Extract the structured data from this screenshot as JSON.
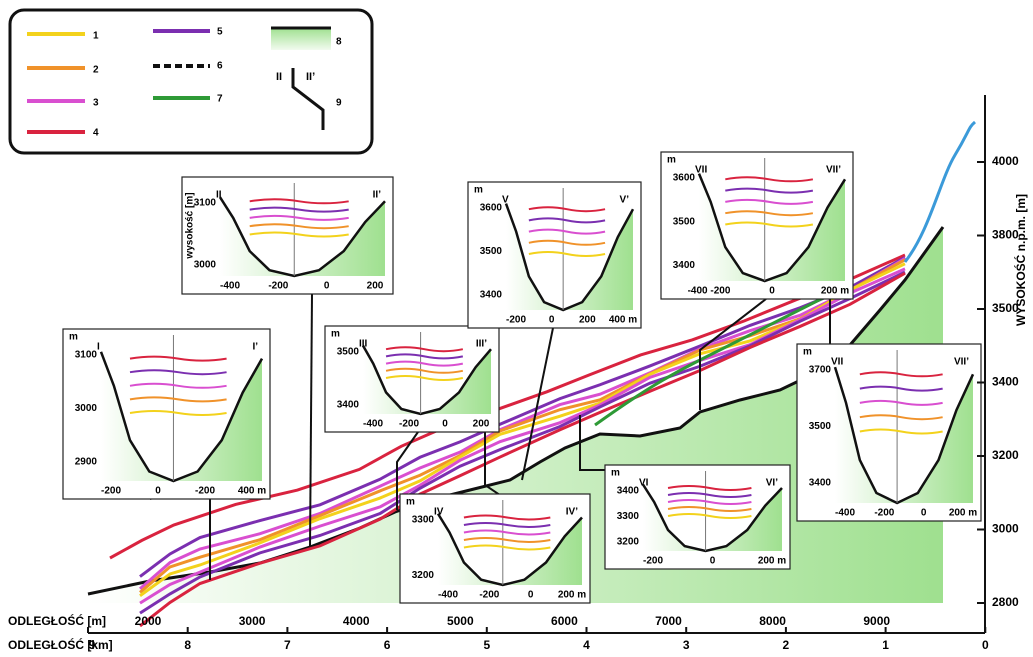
{
  "legend": {
    "items": [
      "1",
      "2",
      "3",
      "4",
      "5",
      "6",
      "7",
      "8",
      "9"
    ],
    "section_labels": [
      "II",
      "II’"
    ]
  },
  "axes": {
    "y_label": "WYSOKOŚĆ n.p.m. [m]",
    "y_ticks": [
      4000,
      3800,
      3500,
      3400,
      3200,
      3000,
      2800
    ],
    "x_m_label": "ODLEGŁOŚĆ [m]",
    "x_m_ticks": [
      2000,
      3000,
      4000,
      5000,
      6000,
      7000,
      8000,
      9000
    ],
    "x_km_label": "ODLEGŁOŚĆ [km]",
    "x_km_ticks": [
      9,
      8,
      7,
      6,
      5,
      4,
      3,
      2,
      1,
      0
    ]
  },
  "insets": [
    {
      "unit": "m",
      "left": "I",
      "right": "I’",
      "y_ticks": [
        "3100",
        "3000",
        "2900"
      ],
      "x_ticks": [
        "-200",
        "0",
        "-200",
        "400 m"
      ]
    },
    {
      "unit": "wysokość [m]",
      "left": "II",
      "right": "II’",
      "y_ticks": [
        "3100",
        "3000"
      ],
      "x_ticks": [
        "-400",
        "-200",
        "0",
        "200"
      ]
    },
    {
      "unit": "m",
      "left": "III",
      "right": "III’",
      "y_ticks": [
        "3500",
        "3400"
      ],
      "x_ticks": [
        "-400",
        "-200",
        "0",
        "200"
      ]
    },
    {
      "unit": "m",
      "left": "IV",
      "right": "IV’",
      "y_ticks": [
        "3300",
        "3200"
      ],
      "x_ticks": [
        "-400",
        "-200",
        "0",
        "200 m"
      ]
    },
    {
      "unit": "m",
      "left": "V",
      "right": "V’",
      "y_ticks": [
        "3600",
        "3500",
        "3400"
      ],
      "x_ticks": [
        "-200",
        "0",
        "200",
        "400 m"
      ]
    },
    {
      "unit": "m",
      "left": "VI",
      "right": "VI’",
      "y_ticks": [
        "3400",
        "3300",
        "3200"
      ],
      "x_ticks": [
        "-200",
        "0",
        "200 m"
      ]
    },
    {
      "unit": "m",
      "left": "VII",
      "right": "VII’",
      "y_ticks": [
        "3600",
        "3500",
        "3400"
      ],
      "x_ticks": [
        "-400 -200",
        "0",
        "200 m"
      ]
    },
    {
      "unit": "m",
      "left": "VII",
      "right": "VII’",
      "y_ticks": [
        "3700",
        "3500",
        "3400"
      ],
      "x_ticks": [
        "-400",
        "-200",
        "0",
        "200 m"
      ]
    }
  ]
}
